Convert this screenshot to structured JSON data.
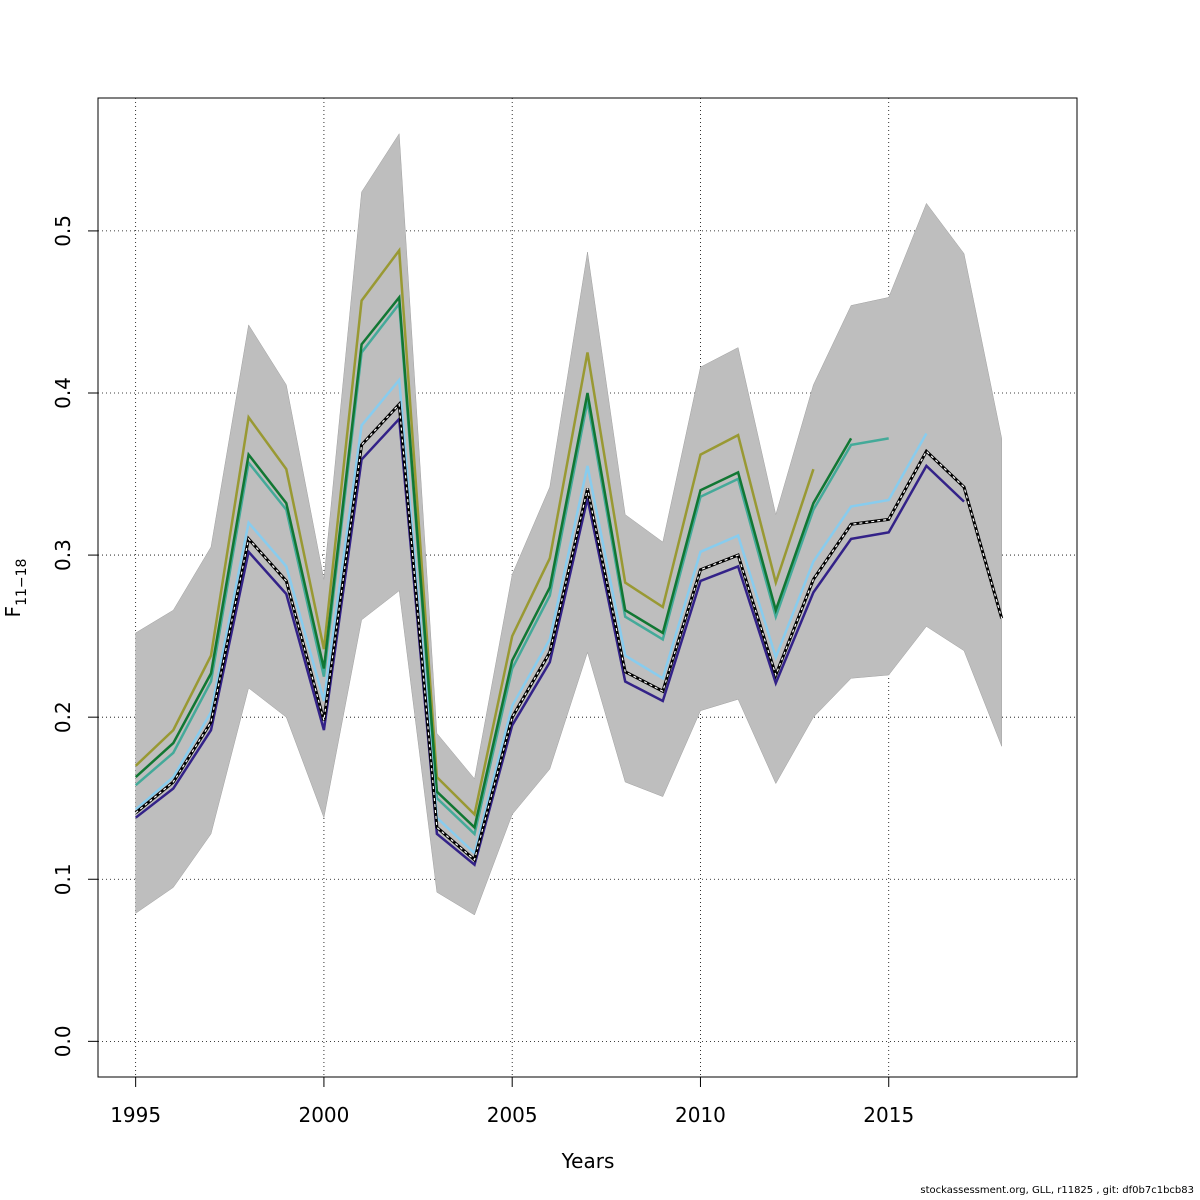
{
  "chart_data": {
    "type": "line",
    "xlabel": "Years",
    "ylabel": {
      "base": "F",
      "sub": "11−18"
    },
    "xlim": [
      1994,
      2020
    ],
    "ylim": [
      -0.022,
      0.582
    ],
    "x_ticks": [
      1995,
      2000,
      2005,
      2010,
      2015
    ],
    "y_ticks": [
      0.0,
      0.1,
      0.2,
      0.3,
      0.4,
      0.5
    ],
    "y_tick_labels": [
      "0.0",
      "0.1",
      "0.2",
      "0.3",
      "0.4",
      "0.5"
    ],
    "grid": true,
    "band": {
      "color": "#bebebe",
      "x": [
        1995,
        1996,
        1997,
        1998,
        1999,
        2000,
        2001,
        2002,
        2003,
        2004,
        2005,
        2006,
        2007,
        2008,
        2009,
        2010,
        2011,
        2012,
        2013,
        2014,
        2015,
        2016,
        2017,
        2018
      ],
      "upper": [
        0.252,
        0.266,
        0.305,
        0.442,
        0.405,
        0.285,
        0.524,
        0.56,
        0.19,
        0.162,
        0.288,
        0.342,
        0.487,
        0.325,
        0.308,
        0.416,
        0.428,
        0.325,
        0.405,
        0.454,
        0.459,
        0.517,
        0.486,
        0.372
      ],
      "lower": [
        0.079,
        0.095,
        0.128,
        0.218,
        0.2,
        0.138,
        0.26,
        0.278,
        0.092,
        0.078,
        0.14,
        0.168,
        0.24,
        0.16,
        0.151,
        0.204,
        0.211,
        0.159,
        0.2,
        0.224,
        0.226,
        0.256,
        0.241,
        0.182
      ]
    },
    "series": [
      {
        "color": "#999933",
        "x": [
          1995,
          1996,
          1997,
          1998,
          1999,
          2000,
          2001,
          2002,
          2003,
          2004,
          2005,
          2006,
          2007,
          2008,
          2009,
          2010,
          2011,
          2012,
          2013
        ],
        "values": [
          0.17,
          0.192,
          0.238,
          0.385,
          0.353,
          0.242,
          0.457,
          0.488,
          0.163,
          0.14,
          0.25,
          0.298,
          0.425,
          0.283,
          0.268,
          0.362,
          0.374,
          0.283,
          0.353
        ]
      },
      {
        "color": "#44aa99",
        "x": [
          1995,
          1996,
          1997,
          1998,
          1999,
          2000,
          2001,
          2002,
          2003,
          2004,
          2005,
          2006,
          2007,
          2008,
          2009,
          2010,
          2011,
          2012,
          2013,
          2014,
          2015
        ],
        "values": [
          0.158,
          0.178,
          0.222,
          0.357,
          0.328,
          0.225,
          0.425,
          0.455,
          0.15,
          0.128,
          0.23,
          0.275,
          0.395,
          0.262,
          0.248,
          0.336,
          0.347,
          0.262,
          0.328,
          0.368,
          0.372
        ]
      },
      {
        "color": "#117733",
        "x": [
          1995,
          1996,
          1997,
          1998,
          1999,
          2000,
          2001,
          2002,
          2003,
          2004,
          2005,
          2006,
          2007,
          2008,
          2009,
          2010,
          2011,
          2012,
          2013,
          2014
        ],
        "values": [
          0.163,
          0.184,
          0.227,
          0.362,
          0.332,
          0.23,
          0.43,
          0.459,
          0.154,
          0.132,
          0.235,
          0.28,
          0.4,
          0.266,
          0.252,
          0.34,
          0.351,
          0.266,
          0.332,
          0.372
        ]
      },
      {
        "color": "#88ccee",
        "x": [
          1995,
          1996,
          1997,
          1998,
          1999,
          2000,
          2001,
          2002,
          2003,
          2004,
          2005,
          2006,
          2007,
          2008,
          2009,
          2010,
          2011,
          2012,
          2013,
          2014,
          2015,
          2016
        ],
        "values": [
          0.143,
          0.163,
          0.203,
          0.32,
          0.293,
          0.21,
          0.38,
          0.408,
          0.138,
          0.116,
          0.207,
          0.248,
          0.355,
          0.238,
          0.224,
          0.302,
          0.312,
          0.237,
          0.296,
          0.33,
          0.334,
          0.375
        ]
      },
      {
        "color": "#332288",
        "x": [
          1995,
          1996,
          1997,
          1998,
          1999,
          2000,
          2001,
          2002,
          2003,
          2004,
          2005,
          2006,
          2007,
          2008,
          2009,
          2010,
          2011,
          2012,
          2013,
          2014,
          2015,
          2016,
          2017
        ],
        "values": [
          0.138,
          0.156,
          0.192,
          0.302,
          0.276,
          0.192,
          0.359,
          0.384,
          0.128,
          0.109,
          0.195,
          0.234,
          0.335,
          0.222,
          0.21,
          0.284,
          0.293,
          0.221,
          0.277,
          0.31,
          0.314,
          0.355,
          0.333
        ]
      },
      {
        "color": "#000000",
        "dashed": true,
        "x": [
          1995,
          1996,
          1997,
          1998,
          1999,
          2000,
          2001,
          2002,
          2003,
          2004,
          2005,
          2006,
          2007,
          2008,
          2009,
          2010,
          2011,
          2012,
          2013,
          2014,
          2015,
          2016,
          2017,
          2018
        ],
        "values": [
          0.141,
          0.16,
          0.197,
          0.31,
          0.284,
          0.198,
          0.368,
          0.393,
          0.132,
          0.112,
          0.2,
          0.24,
          0.341,
          0.228,
          0.216,
          0.291,
          0.3,
          0.226,
          0.285,
          0.319,
          0.322,
          0.364,
          0.342,
          0.261
        ]
      }
    ]
  },
  "footer_text": "stockassessment.org, GLL, r11825 , git: df0b7c1bcb83"
}
